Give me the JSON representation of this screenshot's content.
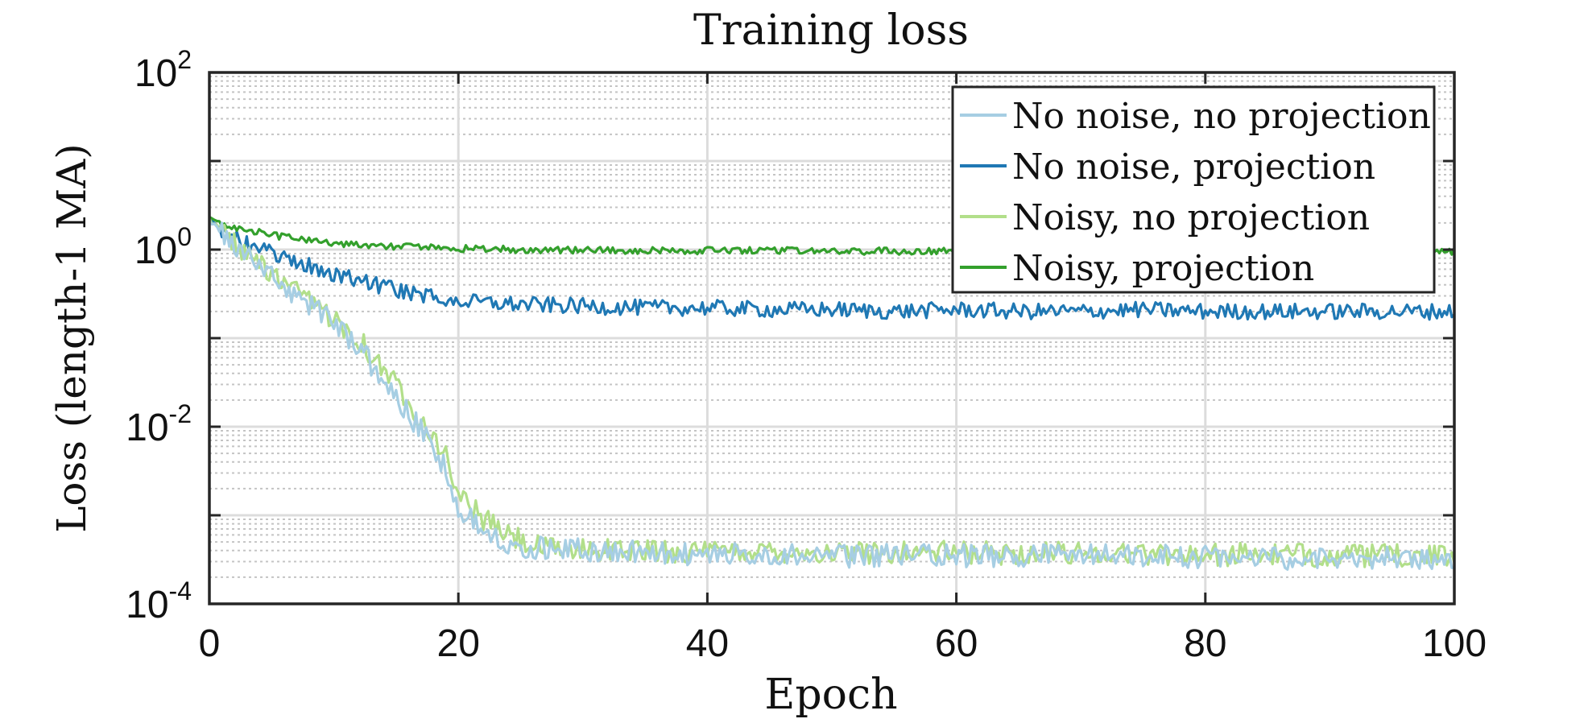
{
  "chart_data": {
    "type": "line",
    "title": "Training loss",
    "xlabel": "Epoch",
    "ylabel": "Loss (length-1 MA)",
    "xlim": [
      0,
      100
    ],
    "ylim": [
      0.0001,
      100
    ],
    "yscale": "log",
    "grid": true,
    "minor_grid": true,
    "legend_position": "top-right",
    "x_ticks": [
      0,
      20,
      40,
      60,
      80,
      100
    ],
    "x_tick_labels": [
      "0",
      "20",
      "40",
      "60",
      "80",
      "100"
    ],
    "y_ticks": [
      0.0001,
      0.01,
      1,
      100
    ],
    "y_tick_labels": [
      {
        "base": "10",
        "exp": "-4"
      },
      {
        "base": "10",
        "exp": "-2"
      },
      {
        "base": "10",
        "exp": "0"
      },
      {
        "base": "10",
        "exp": "2"
      }
    ],
    "series": [
      {
        "name": "No noise, no projection",
        "color": "#a6cee3",
        "x": [
          0,
          1,
          2,
          3,
          4,
          5,
          6,
          7,
          8,
          9,
          10,
          11,
          12,
          13,
          14,
          15,
          16,
          17,
          18,
          19,
          20,
          22,
          24,
          26,
          28,
          30,
          35,
          40,
          45,
          50,
          55,
          60,
          65,
          70,
          75,
          80,
          85,
          90,
          95,
          100
        ],
        "y": [
          2.2,
          1.5,
          1.1,
          0.85,
          0.65,
          0.5,
          0.38,
          0.3,
          0.24,
          0.2,
          0.16,
          0.11,
          0.08,
          0.05,
          0.035,
          0.022,
          0.014,
          0.009,
          0.006,
          0.0032,
          0.0012,
          0.0007,
          0.0005,
          0.00042,
          0.00045,
          0.0004,
          0.00038,
          0.00036,
          0.00037,
          0.00034,
          0.00036,
          0.00035,
          0.00034,
          0.00036,
          0.00035,
          0.00034,
          0.00033,
          0.00032,
          0.00033,
          0.00032
        ]
      },
      {
        "name": "No noise, projection",
        "color": "#1f78b4",
        "x": [
          0,
          1,
          2,
          3,
          4,
          5,
          6,
          7,
          8,
          9,
          10,
          12,
          14,
          16,
          18,
          20,
          25,
          30,
          35,
          40,
          45,
          50,
          55,
          60,
          65,
          70,
          75,
          80,
          85,
          90,
          95,
          100
        ],
        "y": [
          2.2,
          1.7,
          1.35,
          1.15,
          1.0,
          0.9,
          0.8,
          0.72,
          0.65,
          0.58,
          0.52,
          0.45,
          0.38,
          0.33,
          0.29,
          0.26,
          0.24,
          0.23,
          0.22,
          0.22,
          0.21,
          0.21,
          0.2,
          0.21,
          0.2,
          0.2,
          0.21,
          0.2,
          0.2,
          0.2,
          0.2,
          0.2
        ]
      },
      {
        "name": "Noisy, no projection",
        "color": "#b2df8a",
        "x": [
          0,
          1,
          2,
          3,
          4,
          5,
          6,
          7,
          8,
          9,
          10,
          11,
          12,
          13,
          14,
          15,
          16,
          17,
          18,
          19,
          20,
          22,
          24,
          26,
          28,
          30,
          35,
          40,
          45,
          50,
          55,
          60,
          65,
          70,
          75,
          80,
          85,
          90,
          95,
          100
        ],
        "y": [
          2.2,
          1.6,
          1.2,
          0.9,
          0.68,
          0.52,
          0.4,
          0.32,
          0.26,
          0.21,
          0.17,
          0.13,
          0.1,
          0.065,
          0.045,
          0.03,
          0.02,
          0.012,
          0.008,
          0.0045,
          0.0018,
          0.0009,
          0.0006,
          0.00045,
          0.0004,
          0.00042,
          0.0004,
          0.00038,
          0.0004,
          0.00037,
          0.00039,
          0.00038,
          0.00037,
          0.00038,
          0.00037,
          0.00036,
          0.00036,
          0.00035,
          0.00035,
          0.00034
        ]
      },
      {
        "name": "Noisy, projection",
        "color": "#33a02c",
        "x": [
          0,
          1,
          2,
          3,
          4,
          5,
          6,
          8,
          10,
          12,
          14,
          16,
          18,
          20,
          25,
          30,
          35,
          40,
          45,
          50,
          55,
          60,
          65,
          70,
          75,
          80,
          85,
          90,
          95,
          100
        ],
        "y": [
          2.3,
          2.0,
          1.8,
          1.65,
          1.55,
          1.45,
          1.38,
          1.28,
          1.2,
          1.14,
          1.1,
          1.07,
          1.05,
          1.03,
          1.0,
          0.99,
          0.98,
          0.97,
          0.97,
          0.96,
          0.96,
          0.96,
          0.95,
          0.95,
          0.95,
          0.95,
          0.95,
          0.95,
          0.95,
          0.95
        ]
      }
    ]
  }
}
